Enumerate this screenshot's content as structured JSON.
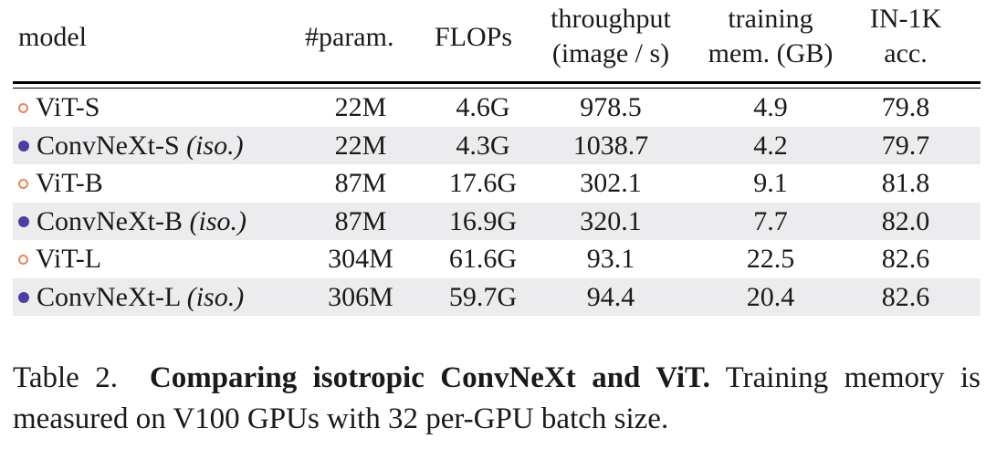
{
  "table": {
    "headers": {
      "model": "model",
      "param": "#param.",
      "flops": "FLOPs",
      "throughput_l1": "throughput",
      "throughput_l2": "(image / s)",
      "memory_l1": "training",
      "memory_l2": "mem. (GB)",
      "acc_l1": "IN-1K",
      "acc_l2": "acc."
    },
    "rows": [
      {
        "marker": "open-circle",
        "name": "ViT-S",
        "suffix": "",
        "param": "22M",
        "flops": "4.6G",
        "throughput": "978.5",
        "memory": "4.9",
        "acc": "79.8"
      },
      {
        "marker": "filled-circle",
        "name": "ConvNeXt-S",
        "suffix": "(iso.)",
        "param": "22M",
        "flops": "4.3G",
        "throughput": "1038.7",
        "memory": "4.2",
        "acc": "79.7"
      },
      {
        "marker": "open-circle",
        "name": "ViT-B",
        "suffix": "",
        "param": "87M",
        "flops": "17.6G",
        "throughput": "302.1",
        "memory": "9.1",
        "acc": "81.8"
      },
      {
        "marker": "filled-circle",
        "name": "ConvNeXt-B",
        "suffix": "(iso.)",
        "param": "87M",
        "flops": "16.9G",
        "throughput": "320.1",
        "memory": "7.7",
        "acc": "82.0"
      },
      {
        "marker": "open-circle",
        "name": "ViT-L",
        "suffix": "",
        "param": "304M",
        "flops": "61.6G",
        "throughput": "93.1",
        "memory": "22.5",
        "acc": "82.6"
      },
      {
        "marker": "filled-circle",
        "name": "ConvNeXt-L",
        "suffix": "(iso.)",
        "param": "306M",
        "flops": "59.7G",
        "throughput": "94.4",
        "memory": "20.4",
        "acc": "82.6"
      }
    ]
  },
  "caption": {
    "label": "Table 2.",
    "bold": "Comparing isotropic ConvNeXt and ViT.",
    "rest": "Training memory is measured on V100 GPUs with 32 per-GPU batch size."
  },
  "colors": {
    "vit_marker": "#e8845a",
    "convnext_marker": "#4a3fa0",
    "row_shade": "#ececee"
  }
}
